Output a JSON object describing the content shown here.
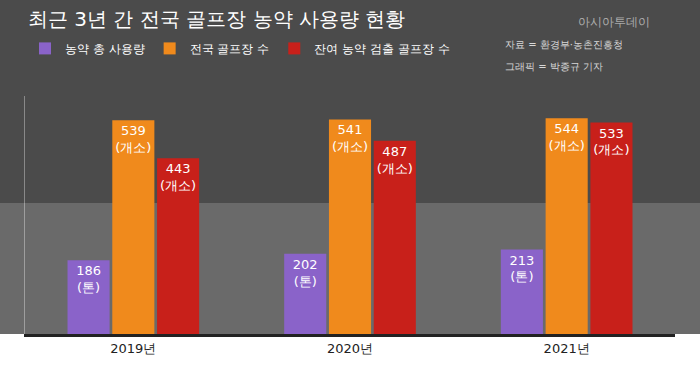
{
  "chart_data": {
    "type": "bar",
    "title": "최근 3년 간 전국 골프장 농약 사용량 현황",
    "categories": [
      "2019년",
      "2020년",
      "2021년"
    ],
    "series": [
      {
        "name": "농약 총 사용량",
        "color": "#8a63c9",
        "values": [
          186,
          202,
          213
        ],
        "value_labels": [
          "186 (톤)",
          "202 (톤)",
          "213 (톤)"
        ]
      },
      {
        "name": "전국 골프장 수",
        "color": "#f08a1c",
        "values": [
          539,
          541,
          544
        ],
        "value_labels": [
          "539 (개소)",
          "541 (개소)",
          "544 (개소)"
        ]
      },
      {
        "name": "잔여 농약 검출 골프장 수",
        "color": "#c8201a",
        "values": [
          443,
          487,
          533
        ],
        "value_labels": [
          "443 (개소)",
          "487 (개소)",
          "533 (개소)"
        ]
      }
    ],
    "ylim": [
      0,
      600
    ],
    "tick_labels": "x",
    "grid": false,
    "legend": "top",
    "data_labels": true,
    "annotations": [
      "자료 = 환경부·농촌진흥청",
      "그래픽 = 박종규 기자",
      "아시아투데이"
    ]
  }
}
